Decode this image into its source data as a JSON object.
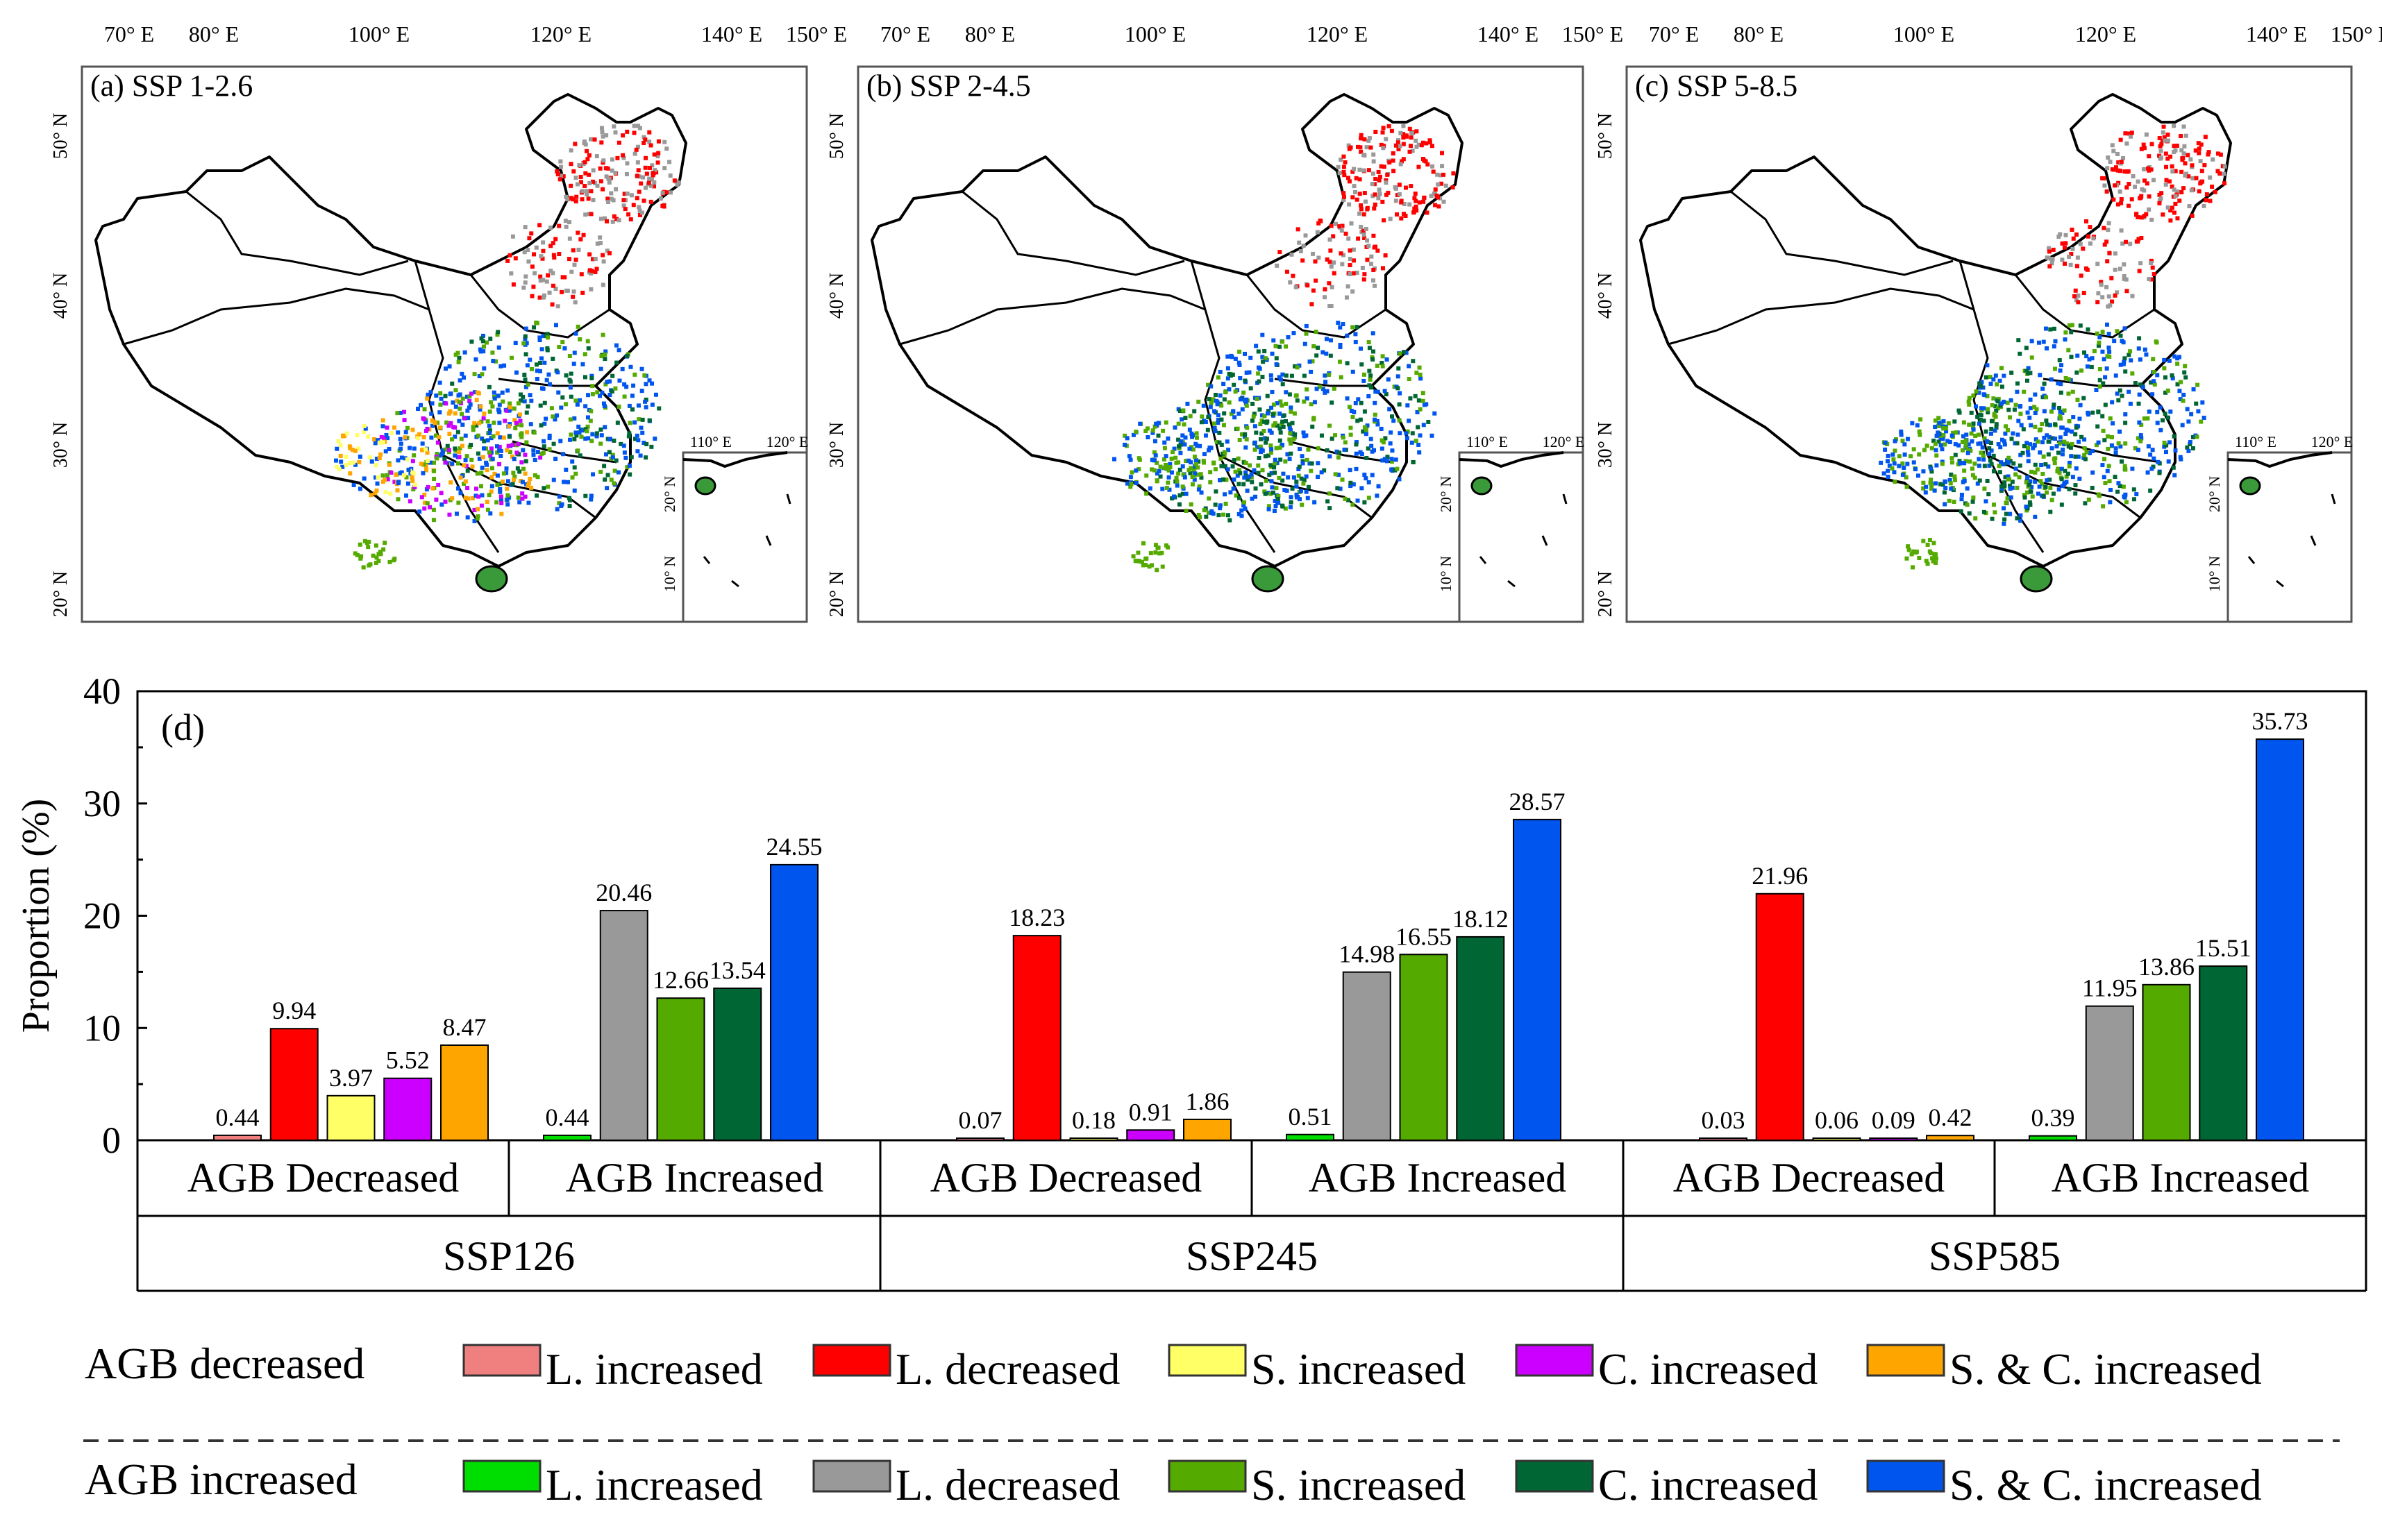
{
  "maps": [
    {
      "label": "(a) SSP 1-2.6"
    },
    {
      "label": "(b) SSP 2-4.5"
    },
    {
      "label": "(c) SSP 5-8.5"
    }
  ],
  "map_axes": {
    "lon_ticks": [
      "70° E",
      "80° E",
      "100° E",
      "120° E",
      "140° E",
      "150° E"
    ],
    "lat_ticks": [
      "50° N",
      "40° N",
      "30° N",
      "20° N"
    ],
    "inset_lon": [
      "110° E",
      "120° E"
    ],
    "inset_lat": [
      "20° N",
      "10° N"
    ]
  },
  "colors": {
    "agb_dec": [
      "#f08080",
      "#ff0000",
      "#ffff66",
      "#cc00ff",
      "#ffa500"
    ],
    "agb_inc": [
      "#00dd00",
      "#999999",
      "#55aa00",
      "#006633",
      "#0055ee"
    ]
  },
  "chart_data": {
    "type": "bar",
    "panel_label": "(d)",
    "ylabel": "Proportion (%)",
    "ylim": [
      0,
      40
    ],
    "yticks": [
      "0",
      "10",
      "20",
      "30",
      "40"
    ],
    "scenarios": [
      {
        "name": "SSP126",
        "groups": [
          {
            "name": "AGB Decreased",
            "values": [
              0.44,
              9.94,
              3.97,
              5.52,
              8.47
            ]
          },
          {
            "name": "AGB Increased",
            "values": [
              0.44,
              20.46,
              12.66,
              13.54,
              24.55
            ]
          }
        ]
      },
      {
        "name": "SSP245",
        "groups": [
          {
            "name": "AGB Decreased",
            "values": [
              0.07,
              18.23,
              0.18,
              0.91,
              1.86
            ]
          },
          {
            "name": "AGB Increased",
            "values": [
              0.51,
              14.98,
              16.55,
              18.12,
              28.57
            ]
          }
        ]
      },
      {
        "name": "SSP585",
        "groups": [
          {
            "name": "AGB Decreased",
            "values": [
              0.03,
              21.96,
              0.06,
              0.09,
              0.42
            ]
          },
          {
            "name": "AGB Increased",
            "values": [
              0.39,
              11.95,
              13.86,
              15.51,
              35.73
            ]
          }
        ]
      }
    ]
  },
  "legend": {
    "rows": [
      {
        "title": "AGB decreased",
        "items": [
          "L. increased",
          "L. decreased",
          "S. increased",
          "C. increased",
          "S. & C. increased"
        ]
      },
      {
        "title": "AGB increased",
        "items": [
          "L. increased",
          "L. decreased",
          "S. increased",
          "C. increased",
          "S. & C. increased"
        ]
      }
    ]
  }
}
